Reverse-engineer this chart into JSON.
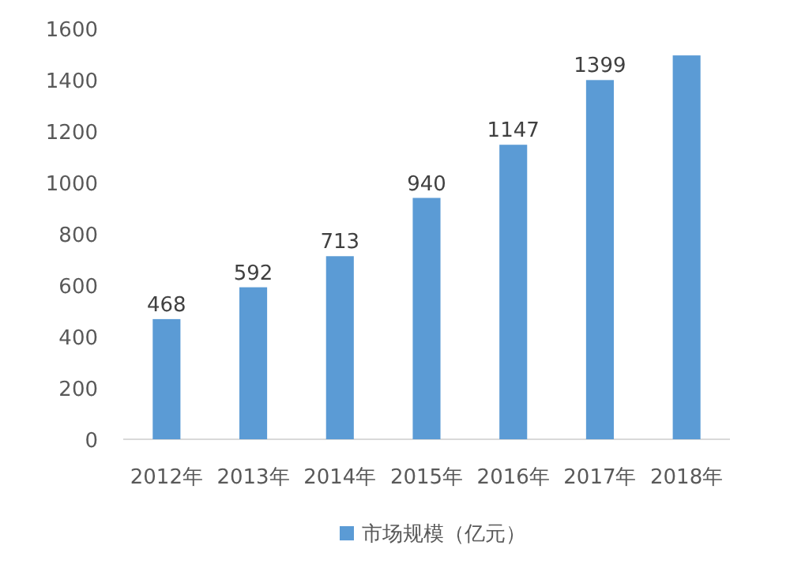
{
  "chart_data": {
    "type": "bar",
    "categories": [
      "2012年",
      "2013年",
      "2014年",
      "2015年",
      "2016年",
      "2017年",
      "2018年"
    ],
    "series": [
      {
        "name": "市场规模（亿元）",
        "color": "#5b9bd5",
        "values": [
          468,
          592,
          713,
          940,
          1147,
          1399,
          1495
        ],
        "value_labels": [
          "468",
          "592",
          "713",
          "940",
          "1147",
          "1399",
          null
        ]
      }
    ],
    "ylim": [
      0,
      1600
    ],
    "yticks": [
      0,
      200,
      400,
      600,
      800,
      1000,
      1200,
      1400,
      1600
    ],
    "grid": false,
    "legend": "bottom"
  }
}
